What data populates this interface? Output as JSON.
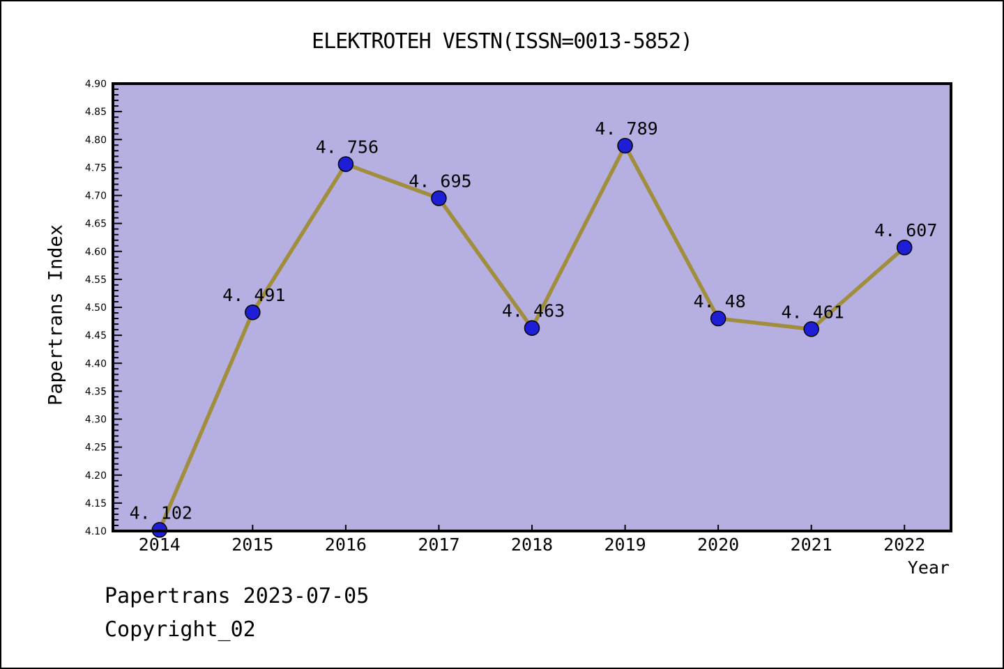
{
  "chart_data": {
    "type": "line",
    "title": "ELEKTROTEH VESTN(ISSN=0013-5852)",
    "xlabel": "Year",
    "ylabel": "Papertrans Index",
    "x": [
      2014,
      2015,
      2016,
      2017,
      2018,
      2019,
      2020,
      2021,
      2022
    ],
    "series": [
      {
        "name": "Papertrans Index",
        "values": [
          4.102,
          4.491,
          4.756,
          4.695,
          4.463,
          4.789,
          4.48,
          4.461,
          4.607
        ]
      }
    ],
    "point_labels": [
      "4.102",
      "4.491",
      "4.756",
      "4.695",
      "4.463",
      "4.789",
      "4.48",
      "4.461",
      "4.607"
    ],
    "ylim": [
      4.1,
      4.9
    ],
    "xlim": [
      2013.5,
      2022.5
    ],
    "y_major_step": 0.05,
    "y_minor_step": 0.01,
    "grid": false,
    "legend_position": "none",
    "colors": {
      "page_bg": "#ffffff",
      "plot_bg": "#b5afe2",
      "line": "#a08e3d",
      "marker": "#1e1ed7",
      "marker_edge": "#000000",
      "axis": "#000000",
      "text": "#000000"
    }
  },
  "footer": {
    "line1": "Papertrans 2023-07-05",
    "line2": "Copyright_02"
  }
}
